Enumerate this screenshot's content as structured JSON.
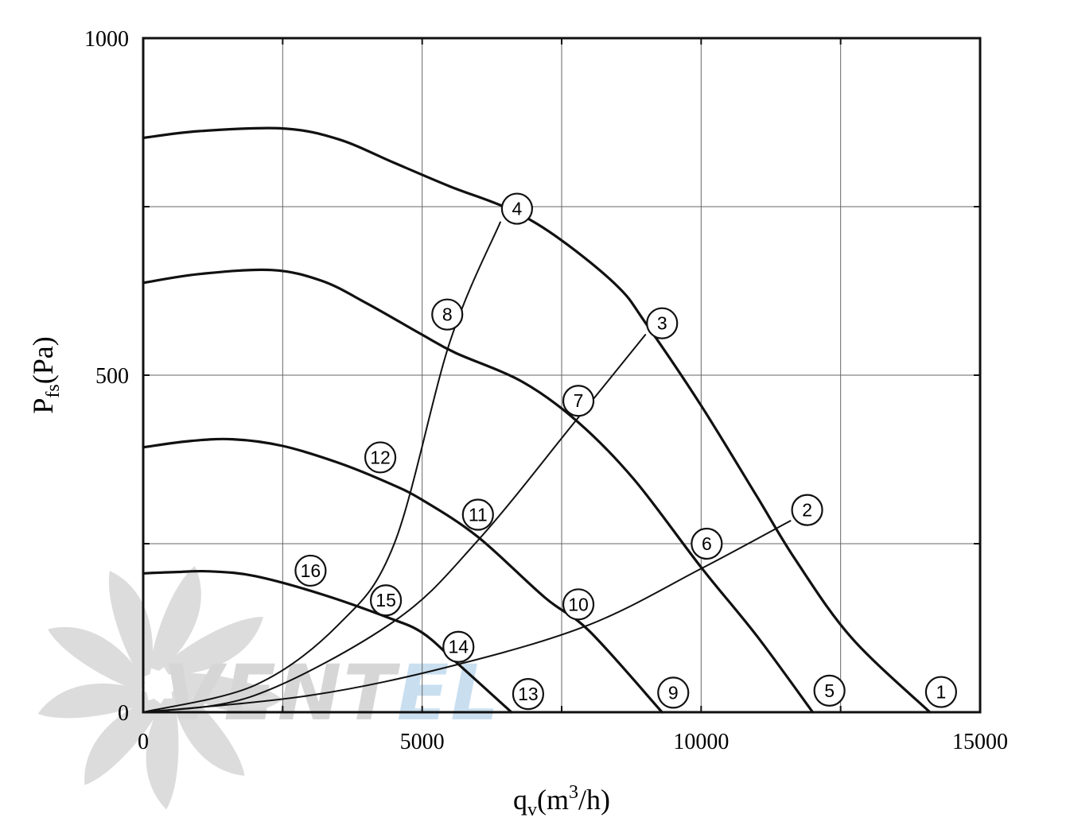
{
  "chart_data": {
    "type": "line",
    "xlabel": {
      "main": "q",
      "sub": "v",
      "unit_pre": "(m",
      "sup": "3",
      "unit_post": "/h)"
    },
    "ylabel": {
      "main": "P",
      "sub": "fs",
      "unit": "(Pa)"
    },
    "xlim": [
      0,
      15000
    ],
    "ylim": [
      0,
      1000
    ],
    "x_ticks": [
      0,
      5000,
      10000,
      15000
    ],
    "y_ticks": [
      0,
      500,
      1000
    ],
    "x_tick_labels": [
      "0",
      "5000",
      "10000",
      "15000"
    ],
    "y_tick_labels": [
      "0",
      "500",
      "1000"
    ],
    "x_grid": [
      2500,
      5000,
      7500,
      10000,
      12500
    ],
    "y_grid": [
      250,
      500,
      750
    ],
    "grid": true,
    "fan_curves": [
      {
        "points": [
          [
            0,
            852
          ],
          [
            1000,
            862
          ],
          [
            2500,
            866
          ],
          [
            3500,
            850
          ],
          [
            4500,
            815
          ],
          [
            5500,
            780
          ],
          [
            6600,
            745
          ],
          [
            7500,
            700
          ],
          [
            8500,
            632
          ],
          [
            9000,
            578
          ],
          [
            10000,
            455
          ],
          [
            11000,
            320
          ],
          [
            11700,
            225
          ],
          [
            12700,
            110
          ],
          [
            14100,
            0
          ]
        ]
      },
      {
        "points": [
          [
            0,
            637
          ],
          [
            1000,
            650
          ],
          [
            2300,
            656
          ],
          [
            3200,
            640
          ],
          [
            4000,
            607
          ],
          [
            5000,
            560
          ],
          [
            5600,
            533
          ],
          [
            6800,
            490
          ],
          [
            7800,
            430
          ],
          [
            8800,
            345
          ],
          [
            10000,
            215
          ],
          [
            11000,
            113
          ],
          [
            12000,
            0
          ]
        ]
      },
      {
        "points": [
          [
            0,
            393
          ],
          [
            800,
            402
          ],
          [
            1600,
            405
          ],
          [
            2500,
            395
          ],
          [
            3500,
            370
          ],
          [
            4400,
            340
          ],
          [
            5000,
            315
          ],
          [
            6000,
            260
          ],
          [
            7200,
            170
          ],
          [
            8000,
            120
          ],
          [
            9300,
            0
          ]
        ]
      },
      {
        "points": [
          [
            0,
            206
          ],
          [
            600,
            208
          ],
          [
            1200,
            209
          ],
          [
            2000,
            202
          ],
          [
            3200,
            175
          ],
          [
            4400,
            140
          ],
          [
            5000,
            118
          ],
          [
            5600,
            75
          ],
          [
            6600,
            0
          ]
        ]
      }
    ],
    "system_curves": [
      {
        "points": [
          [
            0,
            0
          ],
          [
            2000,
            40
          ],
          [
            3500,
            130
          ],
          [
            4500,
            250
          ],
          [
            5500,
            550
          ],
          [
            6400,
            727
          ]
        ]
      },
      {
        "points": [
          [
            0,
            0
          ],
          [
            2000,
            25
          ],
          [
            4500,
            135
          ],
          [
            6000,
            255
          ],
          [
            7700,
            427
          ],
          [
            9000,
            560
          ]
        ]
      },
      {
        "points": [
          [
            0,
            0
          ],
          [
            3000,
            25
          ],
          [
            5600,
            70
          ],
          [
            8000,
            130
          ],
          [
            10000,
            213
          ],
          [
            11600,
            284
          ]
        ]
      }
    ],
    "markers": [
      {
        "label": "1",
        "x": 14300,
        "y": 30
      },
      {
        "label": "2",
        "x": 11900,
        "y": 300
      },
      {
        "label": "3",
        "x": 9300,
        "y": 577
      },
      {
        "label": "4",
        "x": 6700,
        "y": 747
      },
      {
        "label": "5",
        "x": 12300,
        "y": 32
      },
      {
        "label": "6",
        "x": 10100,
        "y": 250
      },
      {
        "label": "7",
        "x": 7800,
        "y": 462
      },
      {
        "label": "8",
        "x": 5450,
        "y": 590
      },
      {
        "label": "9",
        "x": 9500,
        "y": 29
      },
      {
        "label": "10",
        "x": 7800,
        "y": 160
      },
      {
        "label": "11",
        "x": 6000,
        "y": 293
      },
      {
        "label": "12",
        "x": 4250,
        "y": 378
      },
      {
        "label": "13",
        "x": 6900,
        "y": 27
      },
      {
        "label": "14",
        "x": 5650,
        "y": 97
      },
      {
        "label": "15",
        "x": 4350,
        "y": 166
      },
      {
        "label": "16",
        "x": 3000,
        "y": 210
      }
    ]
  },
  "watermark": {
    "text_main": "VENT",
    "text_accent": "EL",
    "color_main": "#d6d6d6",
    "color_accent": "#c9dff0"
  }
}
